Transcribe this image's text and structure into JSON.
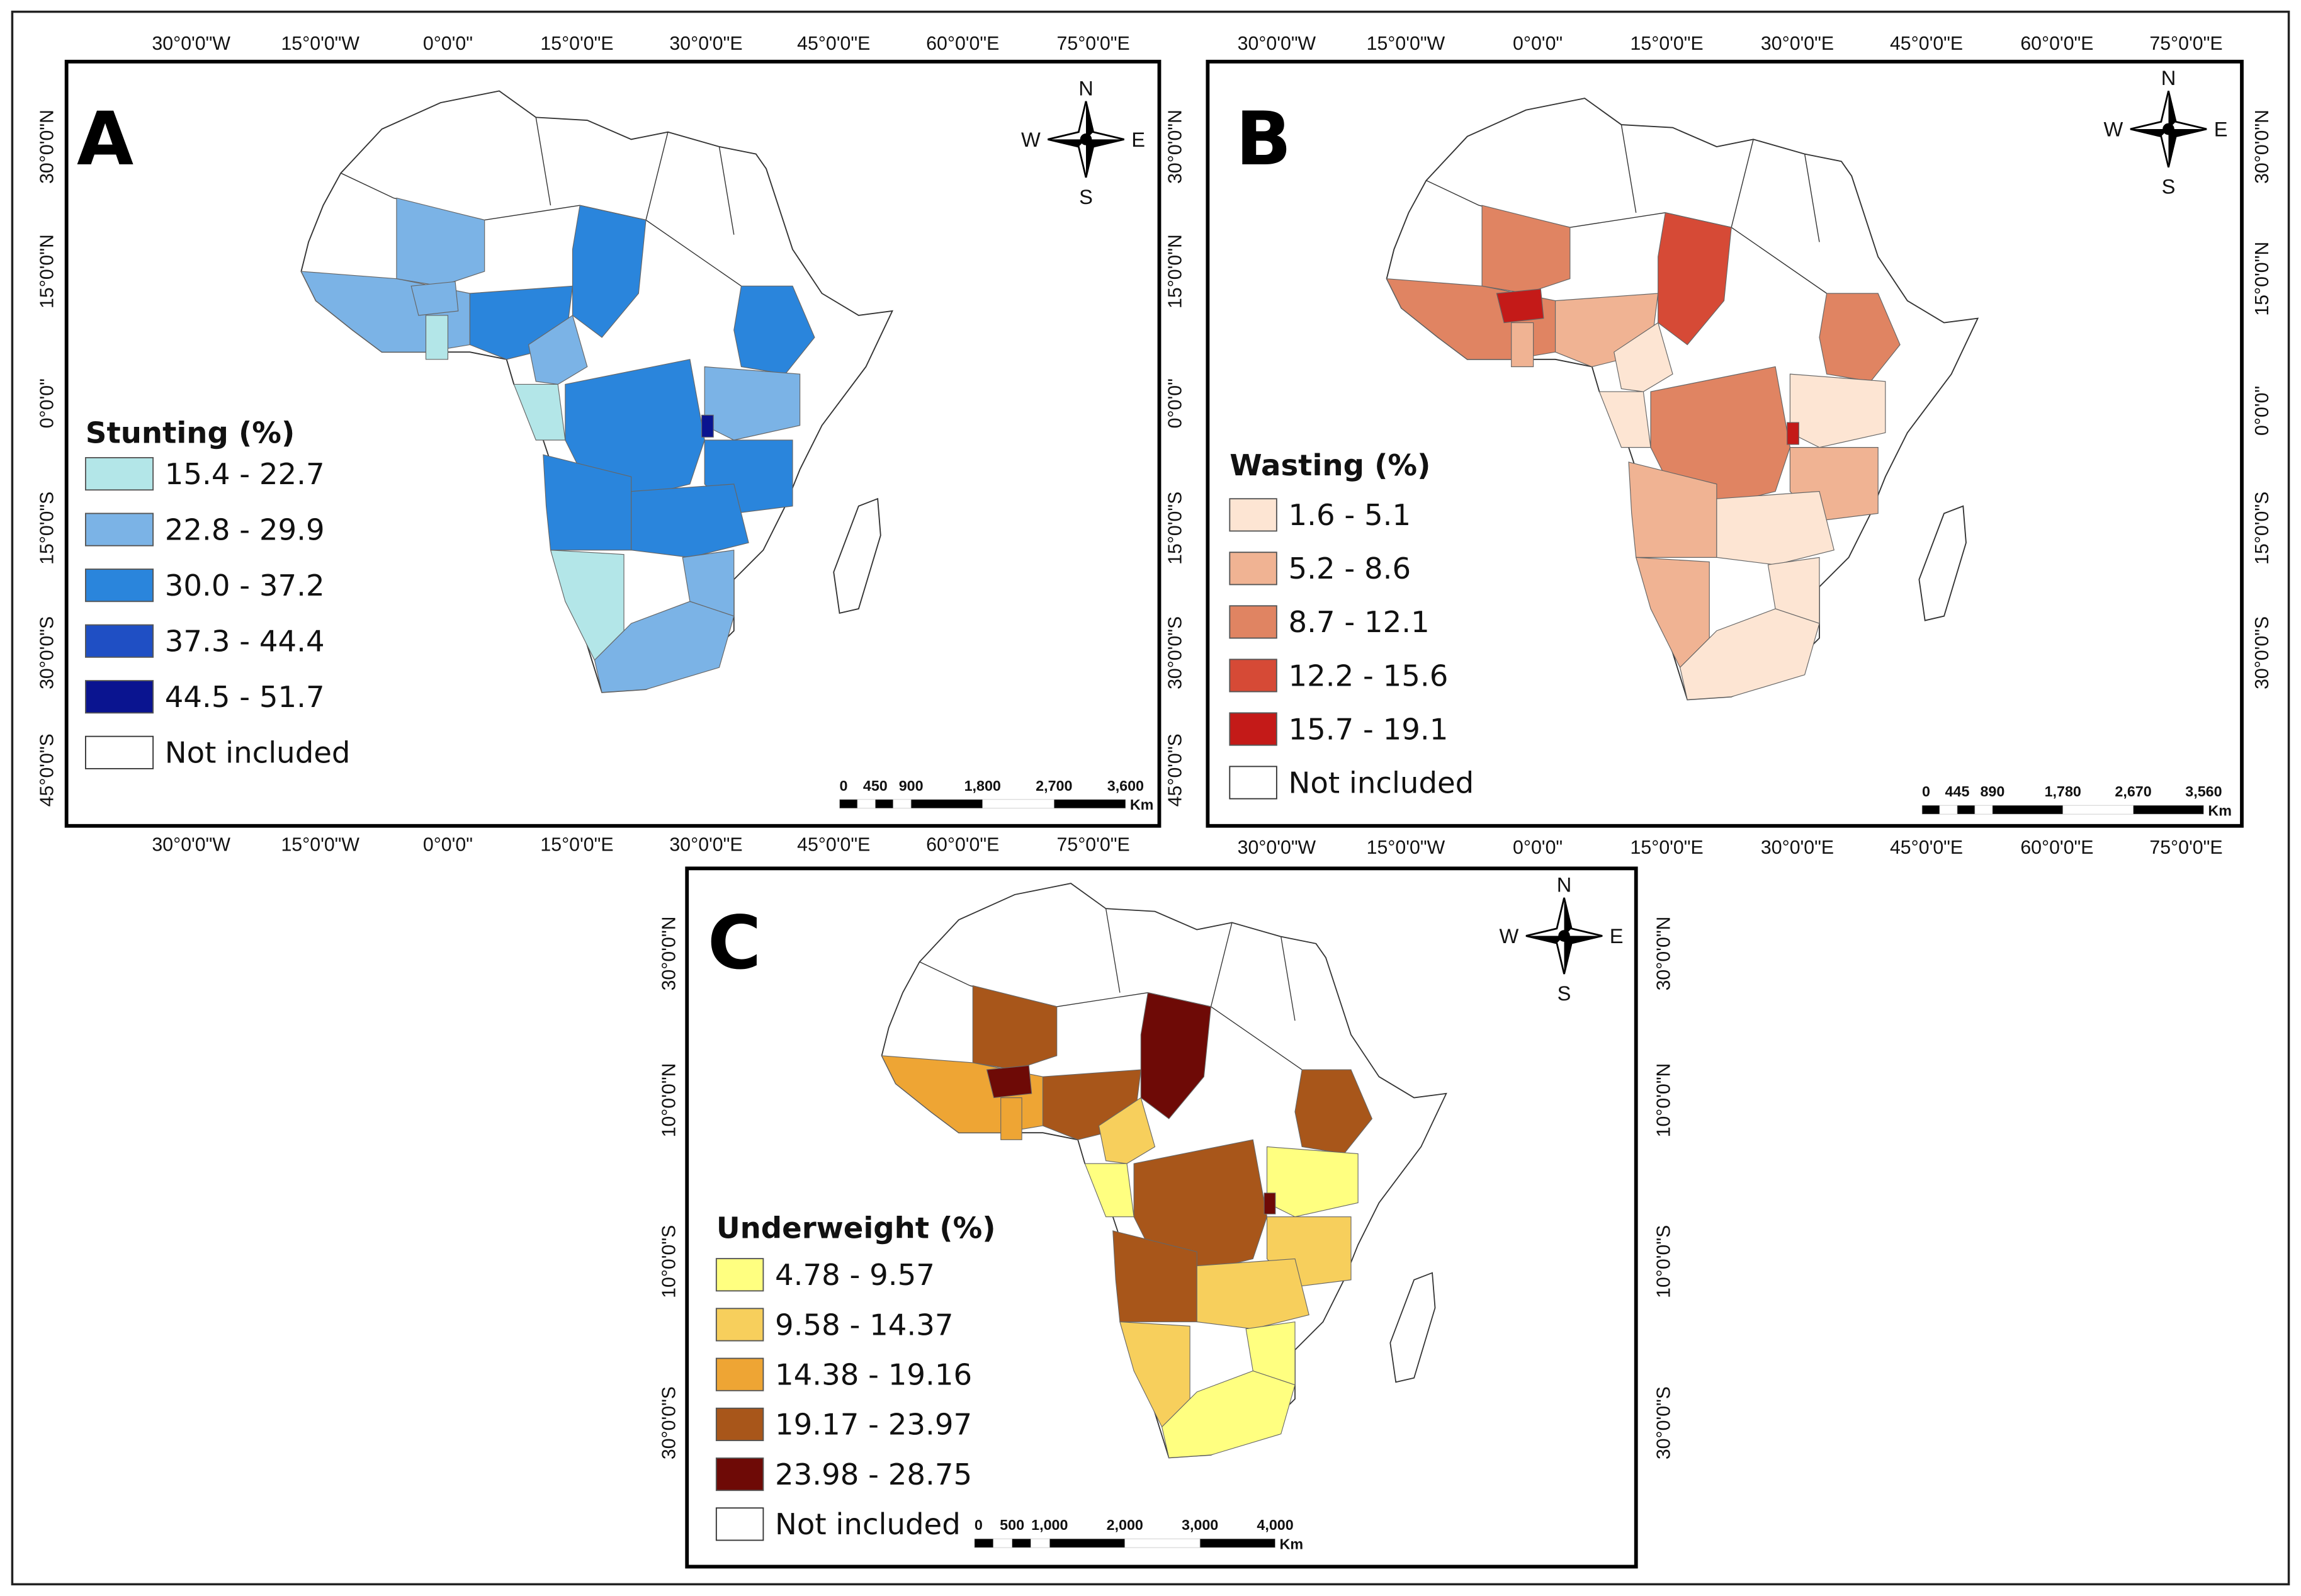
{
  "panels": [
    {
      "letter": "A",
      "legend_title": "Stunting (%)",
      "classes": [
        "15.4 - 22.7",
        "22.8 - 29.9",
        "30.0 - 37.2",
        "37.3 - 44.4",
        "44.5 - 51.7"
      ],
      "colors": [
        "#b3e6e8",
        "#7bb3e6",
        "#2a85dc",
        "#1f4fc4",
        "#0a1490"
      ],
      "not_included": "Not included",
      "scale_labels": [
        "0",
        "450",
        "900",
        "1,800",
        "2,700",
        "3,600"
      ],
      "scale_unit": "Km",
      "top_labels": [
        "30°0'0\"W",
        "15°0'0\"W",
        "0°0'0\"",
        "15°0'0\"E",
        "30°0'0\"E",
        "45°0'0\"E",
        "60°0'0\"E",
        "75°0'0\"E"
      ],
      "bottom_labels": [
        "30°0'0\"W",
        "15°0'0\"W",
        "0°0'0\"",
        "15°0'0\"E",
        "30°0'0\"E",
        "45°0'0\"E",
        "60°0'0\"E",
        "75°0'0\"E"
      ],
      "left_labels": [
        "30°0'0\"N",
        "15°0'0\"N",
        "0°0'0\"",
        "15°0'0\"S",
        "30°0'0\"S",
        "45°0'0\"S"
      ],
      "right_labels": [
        "30°0'0\"N",
        "15°0'0\"N",
        "0°0'0\"",
        "15°0'0\"S",
        "30°0'0\"S",
        "45°0'0\"S"
      ],
      "compass": {
        "n": "N",
        "s": "S",
        "e": "E",
        "w": "W"
      },
      "region_class": {
        "mali": 1,
        "westcoast": 1,
        "burkina": 1,
        "ghana": 0,
        "nigeria": 2,
        "chad": 2,
        "ethiopia": 2,
        "cameroon": 1,
        "gabon": 0,
        "drc": 2,
        "rwanda": 4,
        "eastafrica": 1,
        "tanzania": 2,
        "angola": 2,
        "zambia": 2,
        "namibia": 0,
        "zimbabwe": 1,
        "southafrica": 1
      }
    },
    {
      "letter": "B",
      "legend_title": "Wasting (%)",
      "classes": [
        "1.6 - 5.1",
        "5.2 - 8.6",
        "8.7 - 12.1",
        "12.2 - 15.6",
        "15.7 - 19.1"
      ],
      "colors": [
        "#fde5d3",
        "#f0b393",
        "#e08462",
        "#d64a36",
        "#c41a18"
      ],
      "not_included": "Not included",
      "scale_labels": [
        "0",
        "445",
        "890",
        "1,780",
        "2,670",
        "3,560"
      ],
      "scale_unit": "Km",
      "top_labels": [
        "30°0'0\"W",
        "15°0'0\"W",
        "0°0'0\"",
        "15°0'0\"E",
        "30°0'0\"E",
        "45°0'0\"E",
        "60°0'0\"E",
        "75°0'0\"E"
      ],
      "bottom_labels": [
        "30°0'0\"W",
        "15°0'0\"W",
        "0°0'0\"",
        "15°0'0\"E",
        "30°0'0\"E",
        "45°0'0\"E",
        "60°0'0\"E",
        "75°0'0\"E"
      ],
      "left_labels": [],
      "right_labels": [
        "30°0'0\"N",
        "15°0'0\"N",
        "0°0'0\"",
        "15°0'0\"S",
        "30°0'0\"S"
      ],
      "compass": {
        "n": "N",
        "s": "S",
        "e": "E",
        "w": "W"
      },
      "region_class": {
        "mali": 2,
        "westcoast": 2,
        "burkina": 4,
        "ghana": 1,
        "nigeria": 1,
        "chad": 3,
        "ethiopia": 2,
        "cameroon": 0,
        "gabon": 0,
        "drc": 2,
        "rwanda": 4,
        "eastafrica": 0,
        "tanzania": 1,
        "angola": 1,
        "zambia": 0,
        "namibia": 1,
        "zimbabwe": 0,
        "southafrica": 0
      }
    },
    {
      "letter": "C",
      "legend_title": "Underweight (%)",
      "classes": [
        "4.78 - 9.57",
        "9.58 - 14.37",
        "14.38 - 19.16",
        "19.17 - 23.97",
        "23.98 - 28.75"
      ],
      "colors": [
        "#ffff80",
        "#f7cf5c",
        "#eea534",
        "#a8561a",
        "#6e0a06"
      ],
      "not_included": "Not included",
      "scale_labels": [
        "0",
        "500",
        "1,000",
        "2,000",
        "3,000",
        "4,000"
      ],
      "scale_unit": "Km",
      "top_labels": [],
      "bottom_labels": [],
      "left_labels": [
        "30°0'0\"N",
        "10°0'0\"N",
        "10°0'0\"S",
        "30°0'0\"S"
      ],
      "right_labels": [
        "30°0'0\"N",
        "10°0'0\"N",
        "10°0'0\"S",
        "30°0'0\"S"
      ],
      "compass": {
        "n": "N",
        "s": "S",
        "e": "E",
        "w": "W"
      },
      "region_class": {
        "mali": 3,
        "westcoast": 2,
        "burkina": 4,
        "ghana": 2,
        "nigeria": 3,
        "chad": 4,
        "ethiopia": 3,
        "cameroon": 1,
        "gabon": 0,
        "drc": 3,
        "rwanda": 4,
        "eastafrica": 0,
        "tanzania": 1,
        "angola": 3,
        "zambia": 1,
        "namibia": 1,
        "zimbabwe": 0,
        "southafrica": 0
      }
    }
  ]
}
